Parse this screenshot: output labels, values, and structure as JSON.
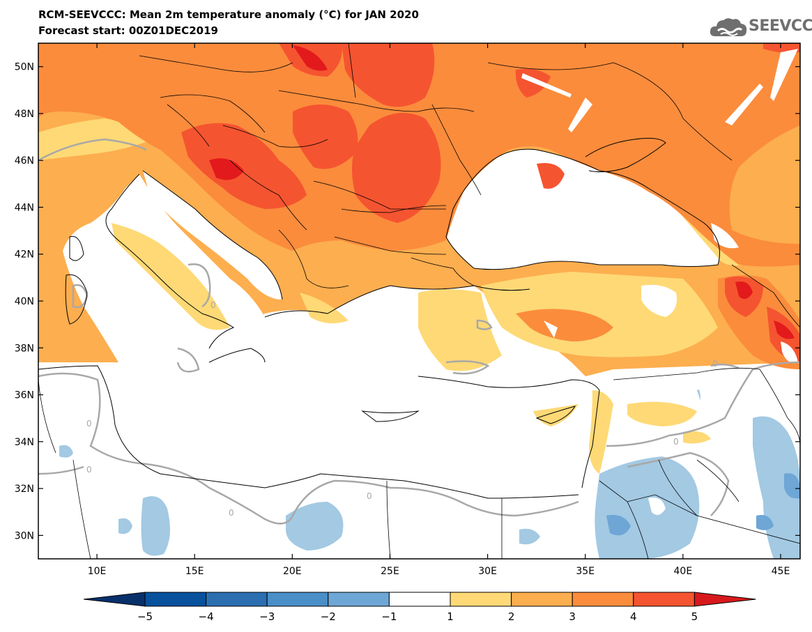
{
  "header": {
    "title": "RCM-SEEVCCC: Mean 2m temperature anomaly (°C) for JAN 2020",
    "subtitle": "Forecast start: 00Z01DEC2019"
  },
  "logo": {
    "text": "SEEVCCC",
    "icon": "cloud-logo-icon",
    "color": "#6f6f6f"
  },
  "map": {
    "extent": {
      "lon_min": 7,
      "lon_max": 46,
      "lat_min": 29,
      "lat_max": 51
    },
    "lat_ticks": [
      {
        "value": 50,
        "label": "50N"
      },
      {
        "value": 48,
        "label": "48N"
      },
      {
        "value": 46,
        "label": "46N"
      },
      {
        "value": 44,
        "label": "44N"
      },
      {
        "value": 42,
        "label": "42N"
      },
      {
        "value": 40,
        "label": "40N"
      },
      {
        "value": 38,
        "label": "38N"
      },
      {
        "value": 36,
        "label": "36N"
      },
      {
        "value": 34,
        "label": "34N"
      },
      {
        "value": 32,
        "label": "32N"
      },
      {
        "value": 30,
        "label": "30N"
      }
    ],
    "lon_ticks": [
      {
        "value": 10,
        "label": "10E"
      },
      {
        "value": 15,
        "label": "15E"
      },
      {
        "value": 20,
        "label": "20E"
      },
      {
        "value": 25,
        "label": "25E"
      },
      {
        "value": 30,
        "label": "30E"
      },
      {
        "value": 35,
        "label": "35E"
      },
      {
        "value": 40,
        "label": "40E"
      },
      {
        "value": 45,
        "label": "45E"
      }
    ],
    "zero_contour_label": "0"
  },
  "colorbar": {
    "labels": [
      "−5",
      "−4",
      "−3",
      "−2",
      "−1",
      "1",
      "2",
      "3",
      "4",
      "5"
    ],
    "colors": [
      "#08519c",
      "#2b6fb0",
      "#4a8fc8",
      "#6ea6d6",
      "#a3c9e3",
      "#ffffff",
      "#fed976",
      "#fdae4f",
      "#fb8c3c",
      "#f55430",
      "#e31a1c"
    ],
    "under_color": "#08306b",
    "over_color": "#d7191c"
  }
}
